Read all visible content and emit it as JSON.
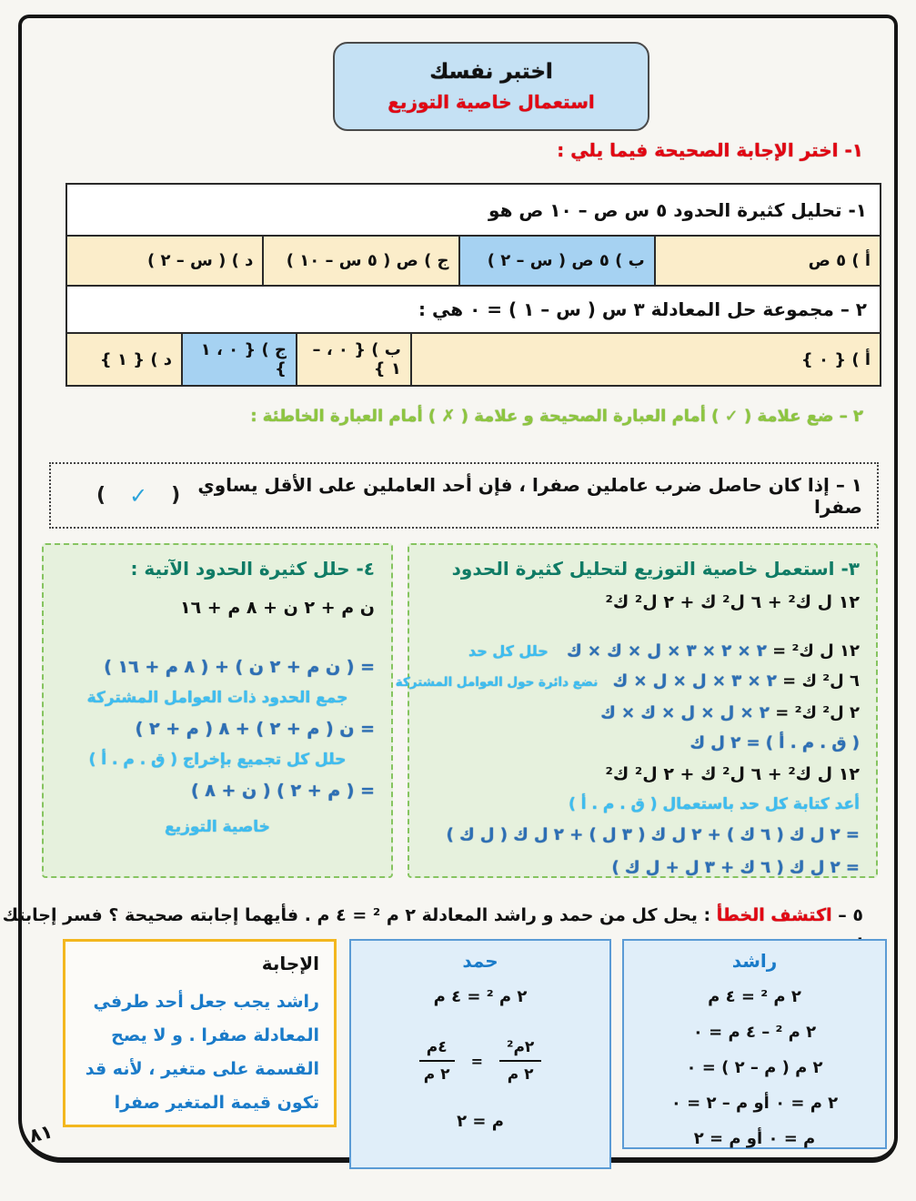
{
  "header": {
    "title": "اختبر نفسك",
    "subtitle": "استعمال خاصية التوزيع"
  },
  "q1": {
    "heading": "١- اختر الإجابة الصحيحة فيما يلي :",
    "items": [
      {
        "question": "١- تحليل كثيرة الحدود   ٥ س ص – ١٠ ص هو",
        "options": [
          {
            "label": "أ )  ٥ ص"
          },
          {
            "label": "ب )  ٥ ص ( س – ٢ )"
          },
          {
            "label": "ج ) ص ( ٥ س – ١٠ )"
          },
          {
            "label": "د ) ( س – ٢ )"
          }
        ]
      },
      {
        "question": "٢ – مجموعة حل المعادلة ٣ س ( س – ١ ) = ٠   هي :",
        "options": [
          {
            "label": "أ )  { ٠ }"
          },
          {
            "label": "ب ) { ٠ ، –١ }"
          },
          {
            "label": "ج ) { ٠ ، ١ }"
          },
          {
            "label": "د ) { ١ }"
          }
        ]
      }
    ]
  },
  "q2": {
    "heading": "٢ – ضع علامة (  ✓  ) أمام العبارة الصحيحة و علامة (  ✗  ) أمام العبارة الخاطئة :",
    "statement": "١ – إذا كان حاصل ضرب عاملين صفرا ، فإن أحد العاملين على الأقل يساوي صفرا",
    "paren_open": "(",
    "mark": "✓",
    "paren_close": ")"
  },
  "q3": {
    "title": "٣- استعمل خاصية التوزيع لتحليل كثيرة الحدود",
    "poly": "١٢ ل ك² + ٦ ل² ك + ٢ ل² ك²",
    "steps": [
      {
        "lhs": "١٢ ل ك² =",
        "rhs": "٢ × ٢ × ٣ × ل × ك × ك",
        "note": "حلل كل حد"
      },
      {
        "lhs": "٦ ل² ك =",
        "rhs": "٢ × ٣ × ل × ل × ك",
        "note": "نضع دائرة حول العوامل المشتركة"
      },
      {
        "lhs": "٢ ل² ك² =",
        "rhs": "٢ × ل × ل × ك × ك",
        "note": ""
      }
    ],
    "gcf": "( ق . م . أ ) = ٢ ل ك",
    "poly2": "١٢ ل ك² + ٦ ل² ك + ٢ ل² ك²",
    "rewrite_note": "أعد كتابة كل حد باستعمال ( ق . م . أ )",
    "line1": "= ٢ ل ك ( ٦ ك ) + ٢ ل ك ( ٣ ل ) + ٢ ل ك ( ل ك )",
    "line2": "= ٢ ل ك ( ٦ ك  +  ٣ ل  +  ل ك )"
  },
  "q4": {
    "title": "٤- حلل كثيرة الحدود الآتية :",
    "poly": "ن م + ٢ ن + ٨ م + ١٦",
    "step1": "= ( ن م + ٢ ن ) + (  ٨ م + ١٦ )",
    "note1": "جمع الحدود ذات العوامل المشتركة",
    "step2": "= ن ( م + ٢ ) + ٨ ( م + ٢ )",
    "note2": "حلل كل تجميع بإخراج ( ق . م . أ )",
    "step3": "= ( م + ٢ ) ( ن + ٨ )",
    "note3": "خاصية التوزيع"
  },
  "q5": {
    "number": "٥ –",
    "label": "اكتشف الخطأ",
    "rest": ": يحل كل من حمد و راشد المعادلة  ٢ م ² = ٤ م . فأيهما إجابته صحيحة ؟ فسر إجابتك .",
    "rashid": {
      "title": "راشد",
      "lines": [
        "٢ م ² = ٤ م",
        "٢ م ² – ٤ م = ٠",
        "٢ م ( م – ٢ ) = ٠",
        "٢ م = ٠   أو   م – ٢ = ٠",
        "م = ٠    أو   م = ٢"
      ]
    },
    "hamad": {
      "title": "حمد",
      "line1": "٢ م ² = ٤ م",
      "frac1_num": "٢م²",
      "frac1_den": "٢ م",
      "equals": "=",
      "frac2_num": "٤م",
      "frac2_den": "٢ م",
      "result": "م = ٢"
    },
    "answer": {
      "title": "الإجابة",
      "text": "راشد يجب جعل أحد طرفي المعادلة صفرا . و لا يصح القسمة على متغير ، لأنه قد تكون قيمة المتغير صفرا"
    }
  },
  "page_number": "٨١"
}
